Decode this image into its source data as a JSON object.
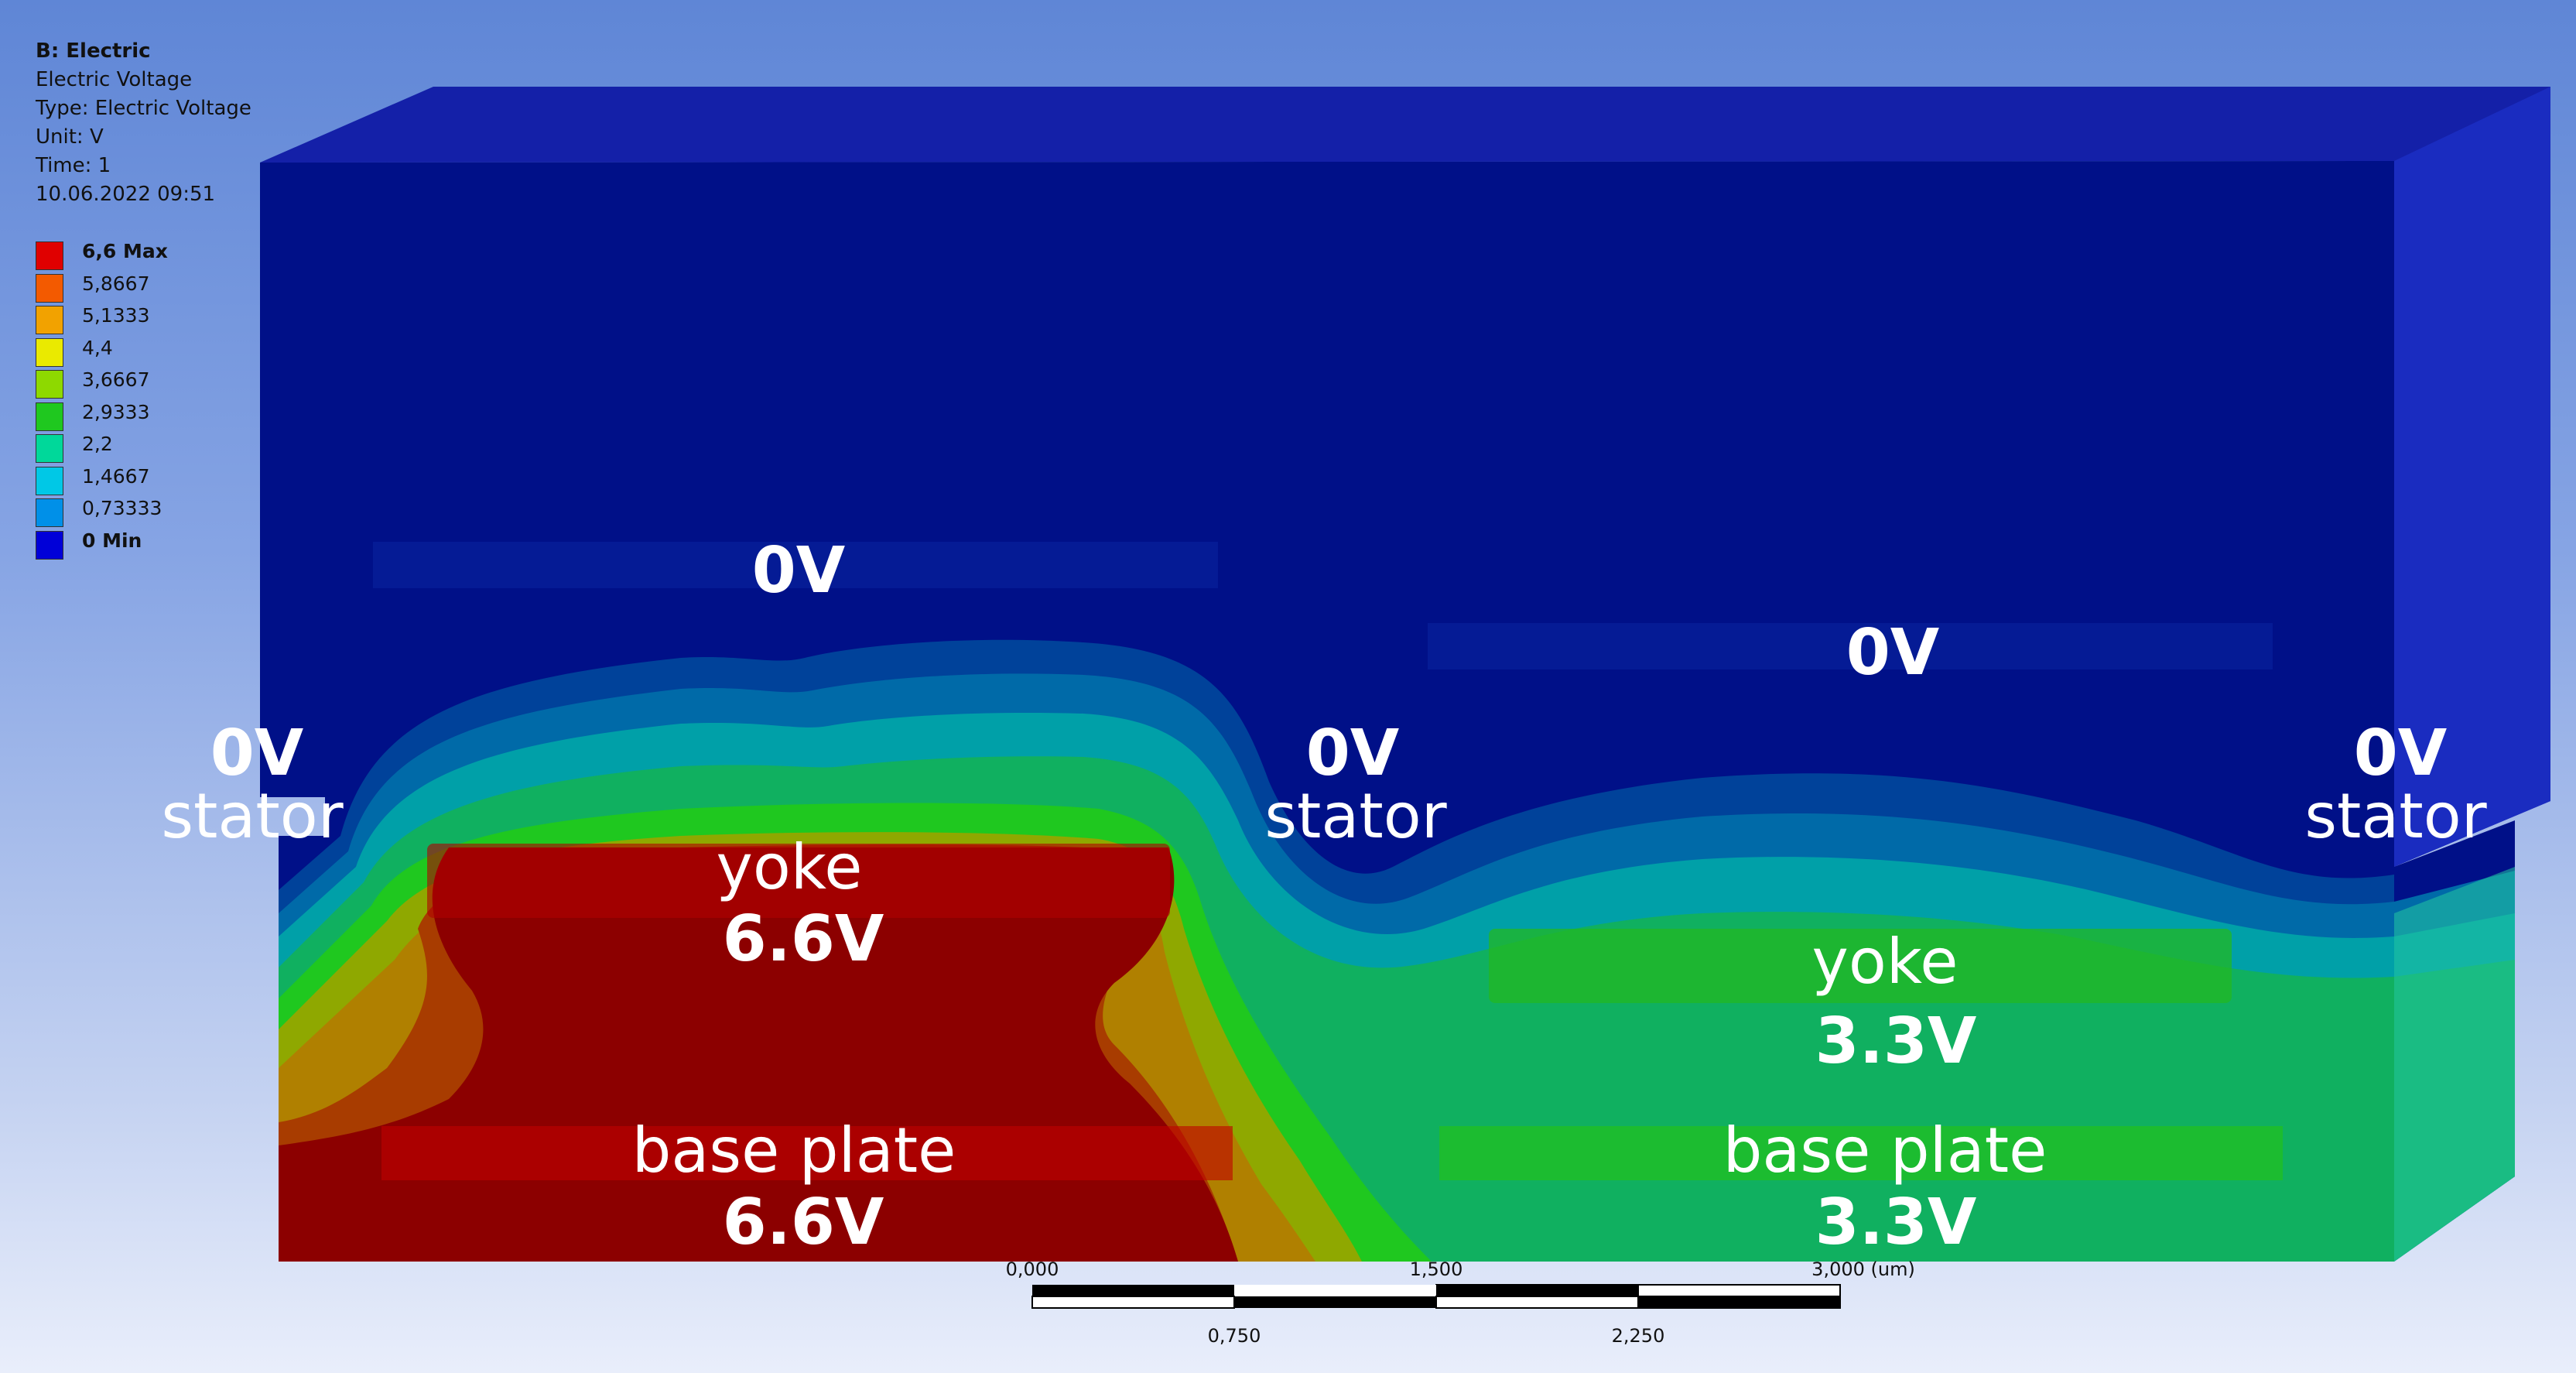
{
  "result_info": {
    "title": "B: Electric",
    "result": "Electric Voltage",
    "type": "Type: Electric Voltage",
    "unit": "Unit: V",
    "time": "Time: 1",
    "date": "10.06.2022 09:51"
  },
  "legend": [
    {
      "label": "6,6 Max",
      "color": "#e00000",
      "bold": true
    },
    {
      "label": "5,8667",
      "color": "#f35a00",
      "bold": false
    },
    {
      "label": "5,1333",
      "color": "#f2a200",
      "bold": false
    },
    {
      "label": "4,4",
      "color": "#eaea00",
      "bold": false
    },
    {
      "label": "3,6667",
      "color": "#8ed900",
      "bold": false
    },
    {
      "label": "2,9333",
      "color": "#1fc81f",
      "bold": false
    },
    {
      "label": "2,2",
      "color": "#00d89a",
      "bold": false
    },
    {
      "label": "1,4667",
      "color": "#00c8e6",
      "bold": false
    },
    {
      "label": "0,73333",
      "color": "#0090e8",
      "bold": false
    },
    {
      "label": "0 Min",
      "color": "#0000d8",
      "bold": true
    }
  ],
  "annotations": {
    "top_left_0v": "0V",
    "top_right_0v": "0V",
    "stator_left_v": "0V",
    "stator_left_label": "stator",
    "stator_mid_v": "0V",
    "stator_mid_label": "stator",
    "stator_right_v": "0V",
    "stator_right_label": "stator",
    "yoke_left_label": "yoke",
    "yoke_left_v": "6.6V",
    "yoke_right_label": "yoke",
    "yoke_right_v": "3.3V",
    "base_left_label": "base plate",
    "base_left_v": "6.6V",
    "base_right_label": "base plate",
    "base_right_v": "3.3V"
  },
  "scale_bar": {
    "labels_top": [
      "0,000",
      "1,500",
      "3,000 (um)"
    ],
    "labels_bottom": [
      "0,750",
      "2,250"
    ]
  }
}
